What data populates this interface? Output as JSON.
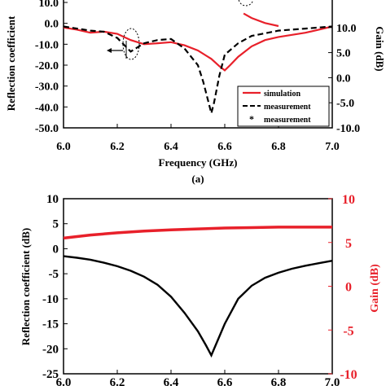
{
  "chart_data": [
    {
      "type": "line",
      "panel_label": "(a)",
      "xlabel": "Frequency (GHz)",
      "ylabel_left": "Reflection coefficient",
      "ylabel_right": "Gain (dB)",
      "xlim": [
        6.0,
        7.0
      ],
      "ylim_left": [
        -50,
        10
      ],
      "ylim_right": [
        -10,
        15
      ],
      "x_ticks": [
        "6.0",
        "6.2",
        "6.4",
        "6.6",
        "6.8",
        "7.0"
      ],
      "y_ticks_left": [
        "10.0",
        "0.0",
        "-10.0",
        "-20.0",
        "-30.0",
        "-40.0",
        "-50.0"
      ],
      "y_ticks_right": [
        "10.0",
        "5.0",
        "0.0",
        "-5.0",
        "-10.0"
      ],
      "legend": {
        "position": "bottom-right",
        "entries": [
          {
            "label": "simulation",
            "style": "solid",
            "color": "#e8202a"
          },
          {
            "label": "measurement",
            "style": "dashed",
            "color": "#000000"
          },
          {
            "label": "measurement",
            "style": "marker",
            "color": "#000000"
          }
        ]
      },
      "series": [
        {
          "style": "solid",
          "color": "#e8202a",
          "axis": "left",
          "x": [
            6.0,
            6.05,
            6.1,
            6.15,
            6.2,
            6.25,
            6.3,
            6.35,
            6.4,
            6.45,
            6.5,
            6.55,
            6.58,
            6.6,
            6.62,
            6.65,
            6.7,
            6.75,
            6.8,
            6.85,
            6.9,
            6.95,
            7.0
          ],
          "y": [
            -2.0,
            -3.0,
            -4.5,
            -4.0,
            -5.0,
            -8.0,
            -10.0,
            -9.5,
            -9.0,
            -10.5,
            -13.0,
            -17.0,
            -20.5,
            -22.5,
            -20.0,
            -16.0,
            -11.0,
            -8.0,
            -6.5,
            -5.5,
            -4.5,
            -3.0,
            -1.5
          ]
        },
        {
          "style": "dashed",
          "color": "#000000",
          "axis": "left",
          "x": [
            6.0,
            6.05,
            6.1,
            6.15,
            6.2,
            6.25,
            6.3,
            6.35,
            6.4,
            6.45,
            6.5,
            6.52,
            6.54,
            6.55,
            6.56,
            6.58,
            6.6,
            6.65,
            6.7,
            6.8,
            6.9,
            7.0
          ],
          "y": [
            -1.5,
            -2.5,
            -3.5,
            -4.0,
            -7.0,
            -13.5,
            -9.5,
            -8.0,
            -7.5,
            -12.0,
            -20.0,
            -28.0,
            -38.0,
            -43.0,
            -38.0,
            -25.0,
            -15.0,
            -9.5,
            -6.0,
            -3.5,
            -2.5,
            -1.5
          ]
        },
        {
          "style": "solid",
          "color": "#e8202a",
          "axis": "right",
          "x": [
            6.67,
            6.7,
            6.75,
            6.8
          ],
          "y": [
            12.8,
            11.9,
            10.9,
            10.3
          ]
        }
      ],
      "annotations": [
        "dotted ellipse with left arrow around 6.2 GHz",
        "dotted ellipse near 6.68 GHz at top"
      ]
    },
    {
      "type": "line",
      "xlabel": "",
      "ylabel_left": "Reflection coefficient (dB)",
      "ylabel_right": "Gain (dB)",
      "xlim": [
        6.0,
        7.0
      ],
      "ylim_left": [
        -25,
        10
      ],
      "ylim_right": [
        -10,
        10
      ],
      "x_ticks": [
        "6.0",
        "6.2",
        "6.4",
        "6.6",
        "6.8",
        "7.0"
      ],
      "y_ticks_left": [
        "10",
        "5",
        "0",
        "-5",
        "-10",
        "-15",
        "-20",
        "-25"
      ],
      "y_ticks_right": [
        "10",
        "5",
        "0",
        "-5",
        "-10"
      ],
      "series": [
        {
          "style": "solid",
          "color": "#000000",
          "axis": "left",
          "x": [
            6.0,
            6.05,
            6.1,
            6.15,
            6.2,
            6.25,
            6.3,
            6.35,
            6.4,
            6.45,
            6.5,
            6.53,
            6.55,
            6.57,
            6.6,
            6.65,
            6.7,
            6.75,
            6.8,
            6.85,
            6.9,
            6.95,
            7.0
          ],
          "y": [
            -1.5,
            -1.8,
            -2.2,
            -2.8,
            -3.5,
            -4.4,
            -5.6,
            -7.2,
            -9.6,
            -12.8,
            -16.5,
            -19.3,
            -21.3,
            -18.8,
            -15.0,
            -10.0,
            -7.4,
            -5.8,
            -4.8,
            -4.0,
            -3.4,
            -2.9,
            -2.4
          ]
        },
        {
          "style": "solid",
          "color": "#e8202a",
          "axis": "right",
          "x": [
            6.0,
            6.1,
            6.2,
            6.3,
            6.4,
            6.5,
            6.6,
            6.7,
            6.8,
            6.9,
            7.0
          ],
          "y": [
            5.5,
            5.85,
            6.1,
            6.3,
            6.45,
            6.55,
            6.65,
            6.7,
            6.75,
            6.75,
            6.75
          ]
        }
      ]
    }
  ]
}
